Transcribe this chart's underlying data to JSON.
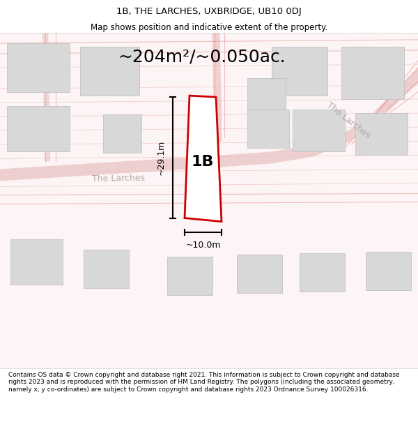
{
  "title_line1": "1B, THE LARCHES, UXBRIDGE, UB10 0DJ",
  "title_line2": "Map shows position and indicative extent of the property.",
  "area_text": "~204m²/~0.050ac.",
  "dim_height": "~29.1m",
  "dim_width": "~10.0m",
  "label_1b": "1B",
  "street_label": "The Larches",
  "street_label2": "The Larches",
  "footer_text": "Contains OS data © Crown copyright and database right 2021. This information is subject to Crown copyright and database rights 2023 and is reproduced with the permission of HM Land Registry. The polygons (including the associated geometry, namely x, y co-ordinates) are subject to Crown copyright and database rights 2023 Ordnance Survey 100026316.",
  "bg_color": "#ffffff",
  "map_bg": "#f9f0f0",
  "road_color": "#e8c8c8",
  "building_fill": "#d8d8d8",
  "building_edge": "#cccccc",
  "plot_outline_color": "#cc0000",
  "plot_fill": "#ffffff",
  "dim_line_color": "#000000",
  "text_color": "#000000",
  "road_label_color": "#aaaaaa",
  "header_bg": "#ffffff",
  "footer_bg": "#ffffff"
}
